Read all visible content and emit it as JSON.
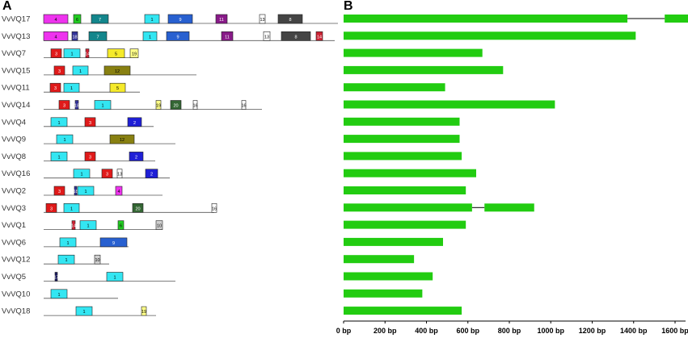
{
  "panels": {
    "a_label": "A",
    "b_label": "B"
  },
  "motif_colors": {
    "1": "#33e6f2",
    "2": "#1f1fd6",
    "3": "#e01a1a",
    "4": "#ee33ee",
    "5": "#f5ea2a",
    "6": "#22cc22",
    "7": "#13868c",
    "8": "#444444",
    "9": "#2860d0",
    "10": "#cfcfcf",
    "11": "#881a88",
    "12": "#888011",
    "13": "#ffffff",
    "14": "#cc2233",
    "15": "#e8e8e8",
    "16": "#ffffff",
    "17": "#1a1a60",
    "18": "#333399",
    "19": "#ffff88",
    "20": "#336633"
  },
  "genes": [
    {
      "name": "VvVQ17"
    },
    {
      "name": "VvVQ13"
    },
    {
      "name": "VvVQ7"
    },
    {
      "name": "VvVQ15"
    },
    {
      "name": "VvVQ11"
    },
    {
      "name": "VvVQ14"
    },
    {
      "name": "VvVQ4"
    },
    {
      "name": "VvVQ9"
    },
    {
      "name": "VvVQ8"
    },
    {
      "name": "VvVQ16"
    },
    {
      "name": "VvVQ2"
    },
    {
      "name": "VvVQ3"
    },
    {
      "name": "VvVQ1"
    },
    {
      "name": "VvVQ6"
    },
    {
      "name": "VvVQ12"
    },
    {
      "name": "VvVQ5"
    },
    {
      "name": "VvVQ10"
    },
    {
      "name": "VvVQ18"
    }
  ],
  "chart_data": {
    "type": "gene_structure",
    "x_axis": {
      "min": 0,
      "max": 1700,
      "unit": "bp",
      "ticks": [
        {
          "value": 0,
          "label": "0 bp"
        },
        {
          "value": 200,
          "label": "200 bp"
        },
        {
          "value": 400,
          "label": "400 bp"
        },
        {
          "value": 600,
          "label": "600 bp"
        },
        {
          "value": 800,
          "label": "800 bp"
        },
        {
          "value": 1000,
          "label": "1000 bp"
        },
        {
          "value": 1200,
          "label": "1200 bp"
        },
        {
          "value": 1400,
          "label": "1400 bp"
        },
        {
          "value": 1600,
          "label": "1600 bp"
        }
      ]
    },
    "exon_color": "#22cc11",
    "intron_color": "#000000",
    "genes": [
      {
        "name": "VvVQ17",
        "exons": [
          [
            0,
            1370
          ],
          [
            1550,
            1690
          ]
        ]
      },
      {
        "name": "VvVQ13",
        "exons": [
          [
            0,
            1410
          ]
        ]
      },
      {
        "name": "VvVQ7",
        "exons": [
          [
            0,
            670
          ]
        ]
      },
      {
        "name": "VvVQ15",
        "exons": [
          [
            0,
            770
          ]
        ]
      },
      {
        "name": "VvVQ11",
        "exons": [
          [
            0,
            490
          ]
        ]
      },
      {
        "name": "VvVQ14",
        "exons": [
          [
            0,
            1020
          ]
        ]
      },
      {
        "name": "VvVQ4",
        "exons": [
          [
            0,
            560
          ]
        ]
      },
      {
        "name": "VvVQ9",
        "exons": [
          [
            0,
            560
          ]
        ]
      },
      {
        "name": "VvVQ8",
        "exons": [
          [
            0,
            570
          ]
        ]
      },
      {
        "name": "VvVQ16",
        "exons": [
          [
            0,
            640
          ]
        ]
      },
      {
        "name": "VvVQ2",
        "exons": [
          [
            0,
            590
          ]
        ]
      },
      {
        "name": "VvVQ3",
        "exons": [
          [
            0,
            620
          ],
          [
            680,
            920
          ]
        ]
      },
      {
        "name": "VvVQ1",
        "exons": [
          [
            0,
            590
          ]
        ]
      },
      {
        "name": "VvVQ6",
        "exons": [
          [
            0,
            480
          ]
        ]
      },
      {
        "name": "VvVQ12",
        "exons": [
          [
            0,
            340
          ]
        ]
      },
      {
        "name": "VvVQ5",
        "exons": [
          [
            0,
            430
          ]
        ]
      },
      {
        "name": "VvVQ10",
        "exons": [
          [
            0,
            380
          ]
        ]
      },
      {
        "name": "VvVQ18",
        "exons": [
          [
            0,
            570
          ]
        ]
      }
    ]
  },
  "motif_data": {
    "scale_max": 364,
    "genes": [
      {
        "name": "VvVQ17",
        "length": 364,
        "motifs": [
          {
            "id": "4",
            "start": 0,
            "end": 30
          },
          {
            "id": "6",
            "start": 37,
            "end": 46
          },
          {
            "id": "7",
            "start": 59,
            "end": 80
          },
          {
            "id": "1",
            "start": 125,
            "end": 143
          },
          {
            "id": "9",
            "start": 154,
            "end": 184
          },
          {
            "id": "11",
            "start": 213,
            "end": 227
          },
          {
            "id": "13",
            "start": 267,
            "end": 274
          },
          {
            "id": "8",
            "start": 290,
            "end": 320
          }
        ]
      },
      {
        "name": "VvVQ13",
        "length": 360,
        "motifs": [
          {
            "id": "4",
            "start": 0,
            "end": 30
          },
          {
            "id": "18",
            "start": 35,
            "end": 42
          },
          {
            "id": "7",
            "start": 56,
            "end": 78
          },
          {
            "id": "1",
            "start": 123,
            "end": 140
          },
          {
            "id": "9",
            "start": 152,
            "end": 180
          },
          {
            "id": "11",
            "start": 220,
            "end": 234
          },
          {
            "id": "13",
            "start": 272,
            "end": 280
          },
          {
            "id": "8",
            "start": 294,
            "end": 330
          },
          {
            "id": "14",
            "start": 337,
            "end": 345
          }
        ]
      },
      {
        "name": "VvVQ7",
        "length": 117,
        "motifs": [
          {
            "id": "3",
            "start": 9,
            "end": 22
          },
          {
            "id": "1",
            "start": 25,
            "end": 45
          },
          {
            "id": "14",
            "start": 52,
            "end": 56
          },
          {
            "id": "5",
            "start": 79,
            "end": 100
          },
          {
            "id": "19",
            "start": 107,
            "end": 117
          }
        ]
      },
      {
        "name": "VvVQ15",
        "length": 189,
        "motifs": [
          {
            "id": "3",
            "start": 13,
            "end": 26
          },
          {
            "id": "1",
            "start": 36,
            "end": 55
          },
          {
            "id": "12",
            "start": 75,
            "end": 107
          }
        ]
      },
      {
        "name": "VvVQ11",
        "length": 119,
        "motifs": [
          {
            "id": "3",
            "start": 8,
            "end": 21
          },
          {
            "id": "1",
            "start": 25,
            "end": 44
          },
          {
            "id": "5",
            "start": 82,
            "end": 101
          }
        ]
      },
      {
        "name": "VvVQ14",
        "length": 270,
        "motifs": [
          {
            "id": "3",
            "start": 19,
            "end": 32
          },
          {
            "id": "18",
            "start": 39,
            "end": 43
          },
          {
            "id": "1",
            "start": 63,
            "end": 83
          },
          {
            "id": "19",
            "start": 139,
            "end": 145
          },
          {
            "id": "20",
            "start": 157,
            "end": 170
          },
          {
            "id": "16",
            "start": 185,
            "end": 190
          },
          {
            "id": "16",
            "start": 245,
            "end": 250
          }
        ]
      },
      {
        "name": "VvVQ4",
        "length": 136,
        "motifs": [
          {
            "id": "1",
            "start": 9,
            "end": 29
          },
          {
            "id": "3",
            "start": 51,
            "end": 64
          },
          {
            "id": "2",
            "start": 104,
            "end": 121
          }
        ]
      },
      {
        "name": "VvVQ9",
        "length": 163,
        "motifs": [
          {
            "id": "1",
            "start": 16,
            "end": 36
          },
          {
            "id": "12",
            "start": 82,
            "end": 112
          }
        ]
      },
      {
        "name": "VvVQ8",
        "length": 138,
        "motifs": [
          {
            "id": "1",
            "start": 9,
            "end": 29
          },
          {
            "id": "3",
            "start": 51,
            "end": 64
          },
          {
            "id": "2",
            "start": 106,
            "end": 123
          }
        ]
      },
      {
        "name": "VvVQ16",
        "length": 156,
        "motifs": [
          {
            "id": "1",
            "start": 37,
            "end": 57
          },
          {
            "id": "3",
            "start": 72,
            "end": 85
          },
          {
            "id": "13",
            "start": 91,
            "end": 97
          },
          {
            "id": "2",
            "start": 126,
            "end": 141
          }
        ]
      },
      {
        "name": "VvVQ2",
        "length": 147,
        "motifs": [
          {
            "id": "3",
            "start": 13,
            "end": 26
          },
          {
            "id": "18",
            "start": 38,
            "end": 41
          },
          {
            "id": "1",
            "start": 42,
            "end": 62
          },
          {
            "id": "4",
            "start": 89,
            "end": 97
          }
        ]
      },
      {
        "name": "VvVQ3",
        "length": 211,
        "motifs": [
          {
            "id": "3",
            "start": 3,
            "end": 16
          },
          {
            "id": "1",
            "start": 25,
            "end": 44
          },
          {
            "id": "20",
            "start": 110,
            "end": 123
          },
          {
            "id": "16",
            "start": 208,
            "end": 214
          }
        ]
      },
      {
        "name": "VvVQ1",
        "length": 147,
        "motifs": [
          {
            "id": "14",
            "start": 35,
            "end": 39
          },
          {
            "id": "1",
            "start": 45,
            "end": 65
          },
          {
            "id": "6",
            "start": 92,
            "end": 99
          },
          {
            "id": "10",
            "start": 139,
            "end": 147
          }
        ]
      },
      {
        "name": "VvVQ6",
        "length": 105,
        "motifs": [
          {
            "id": "1",
            "start": 20,
            "end": 40
          },
          {
            "id": "9",
            "start": 70,
            "end": 103
          }
        ]
      },
      {
        "name": "VvVQ12",
        "length": 81,
        "motifs": [
          {
            "id": "1",
            "start": 18,
            "end": 38
          },
          {
            "id": "10",
            "start": 63,
            "end": 70
          }
        ]
      },
      {
        "name": "VvVQ5",
        "length": 163,
        "motifs": [
          {
            "id": "17",
            "start": 14,
            "end": 17
          },
          {
            "id": "1",
            "start": 78,
            "end": 98
          }
        ]
      },
      {
        "name": "VvVQ10",
        "length": 92,
        "motifs": [
          {
            "id": "1",
            "start": 9,
            "end": 29
          }
        ]
      },
      {
        "name": "VvVQ18",
        "length": 139,
        "motifs": [
          {
            "id": "1",
            "start": 40,
            "end": 60
          },
          {
            "id": "19",
            "start": 121,
            "end": 127
          }
        ]
      }
    ]
  }
}
